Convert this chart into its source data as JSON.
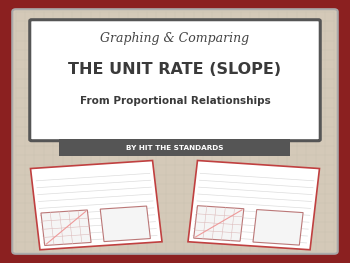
{
  "bg_outer": "#8B2020",
  "bg_inner": "#D4C9B8",
  "title_box_bg": "#FFFFFF",
  "title_box_border": "#555555",
  "subtitle_bar_bg": "#555555",
  "subtitle_bar_text": "#FFFFFF",
  "line1_text": "Graphing & Comparing",
  "line1_color": "#444444",
  "line2_text": "THE UNIT RATE (SLOPE)",
  "line2_color": "#3A3A3A",
  "line3_text": "From Proportional Relationships",
  "line3_color": "#3A3A3A",
  "byline_text": "BY HIT THE STANDARDS",
  "byline_color": "#FFFFFF",
  "worksheet_color": "#FFFFFF",
  "worksheet_border": "#C04040",
  "grid_color": "#CCCCCC",
  "bg_outer_color": "#8B2020"
}
